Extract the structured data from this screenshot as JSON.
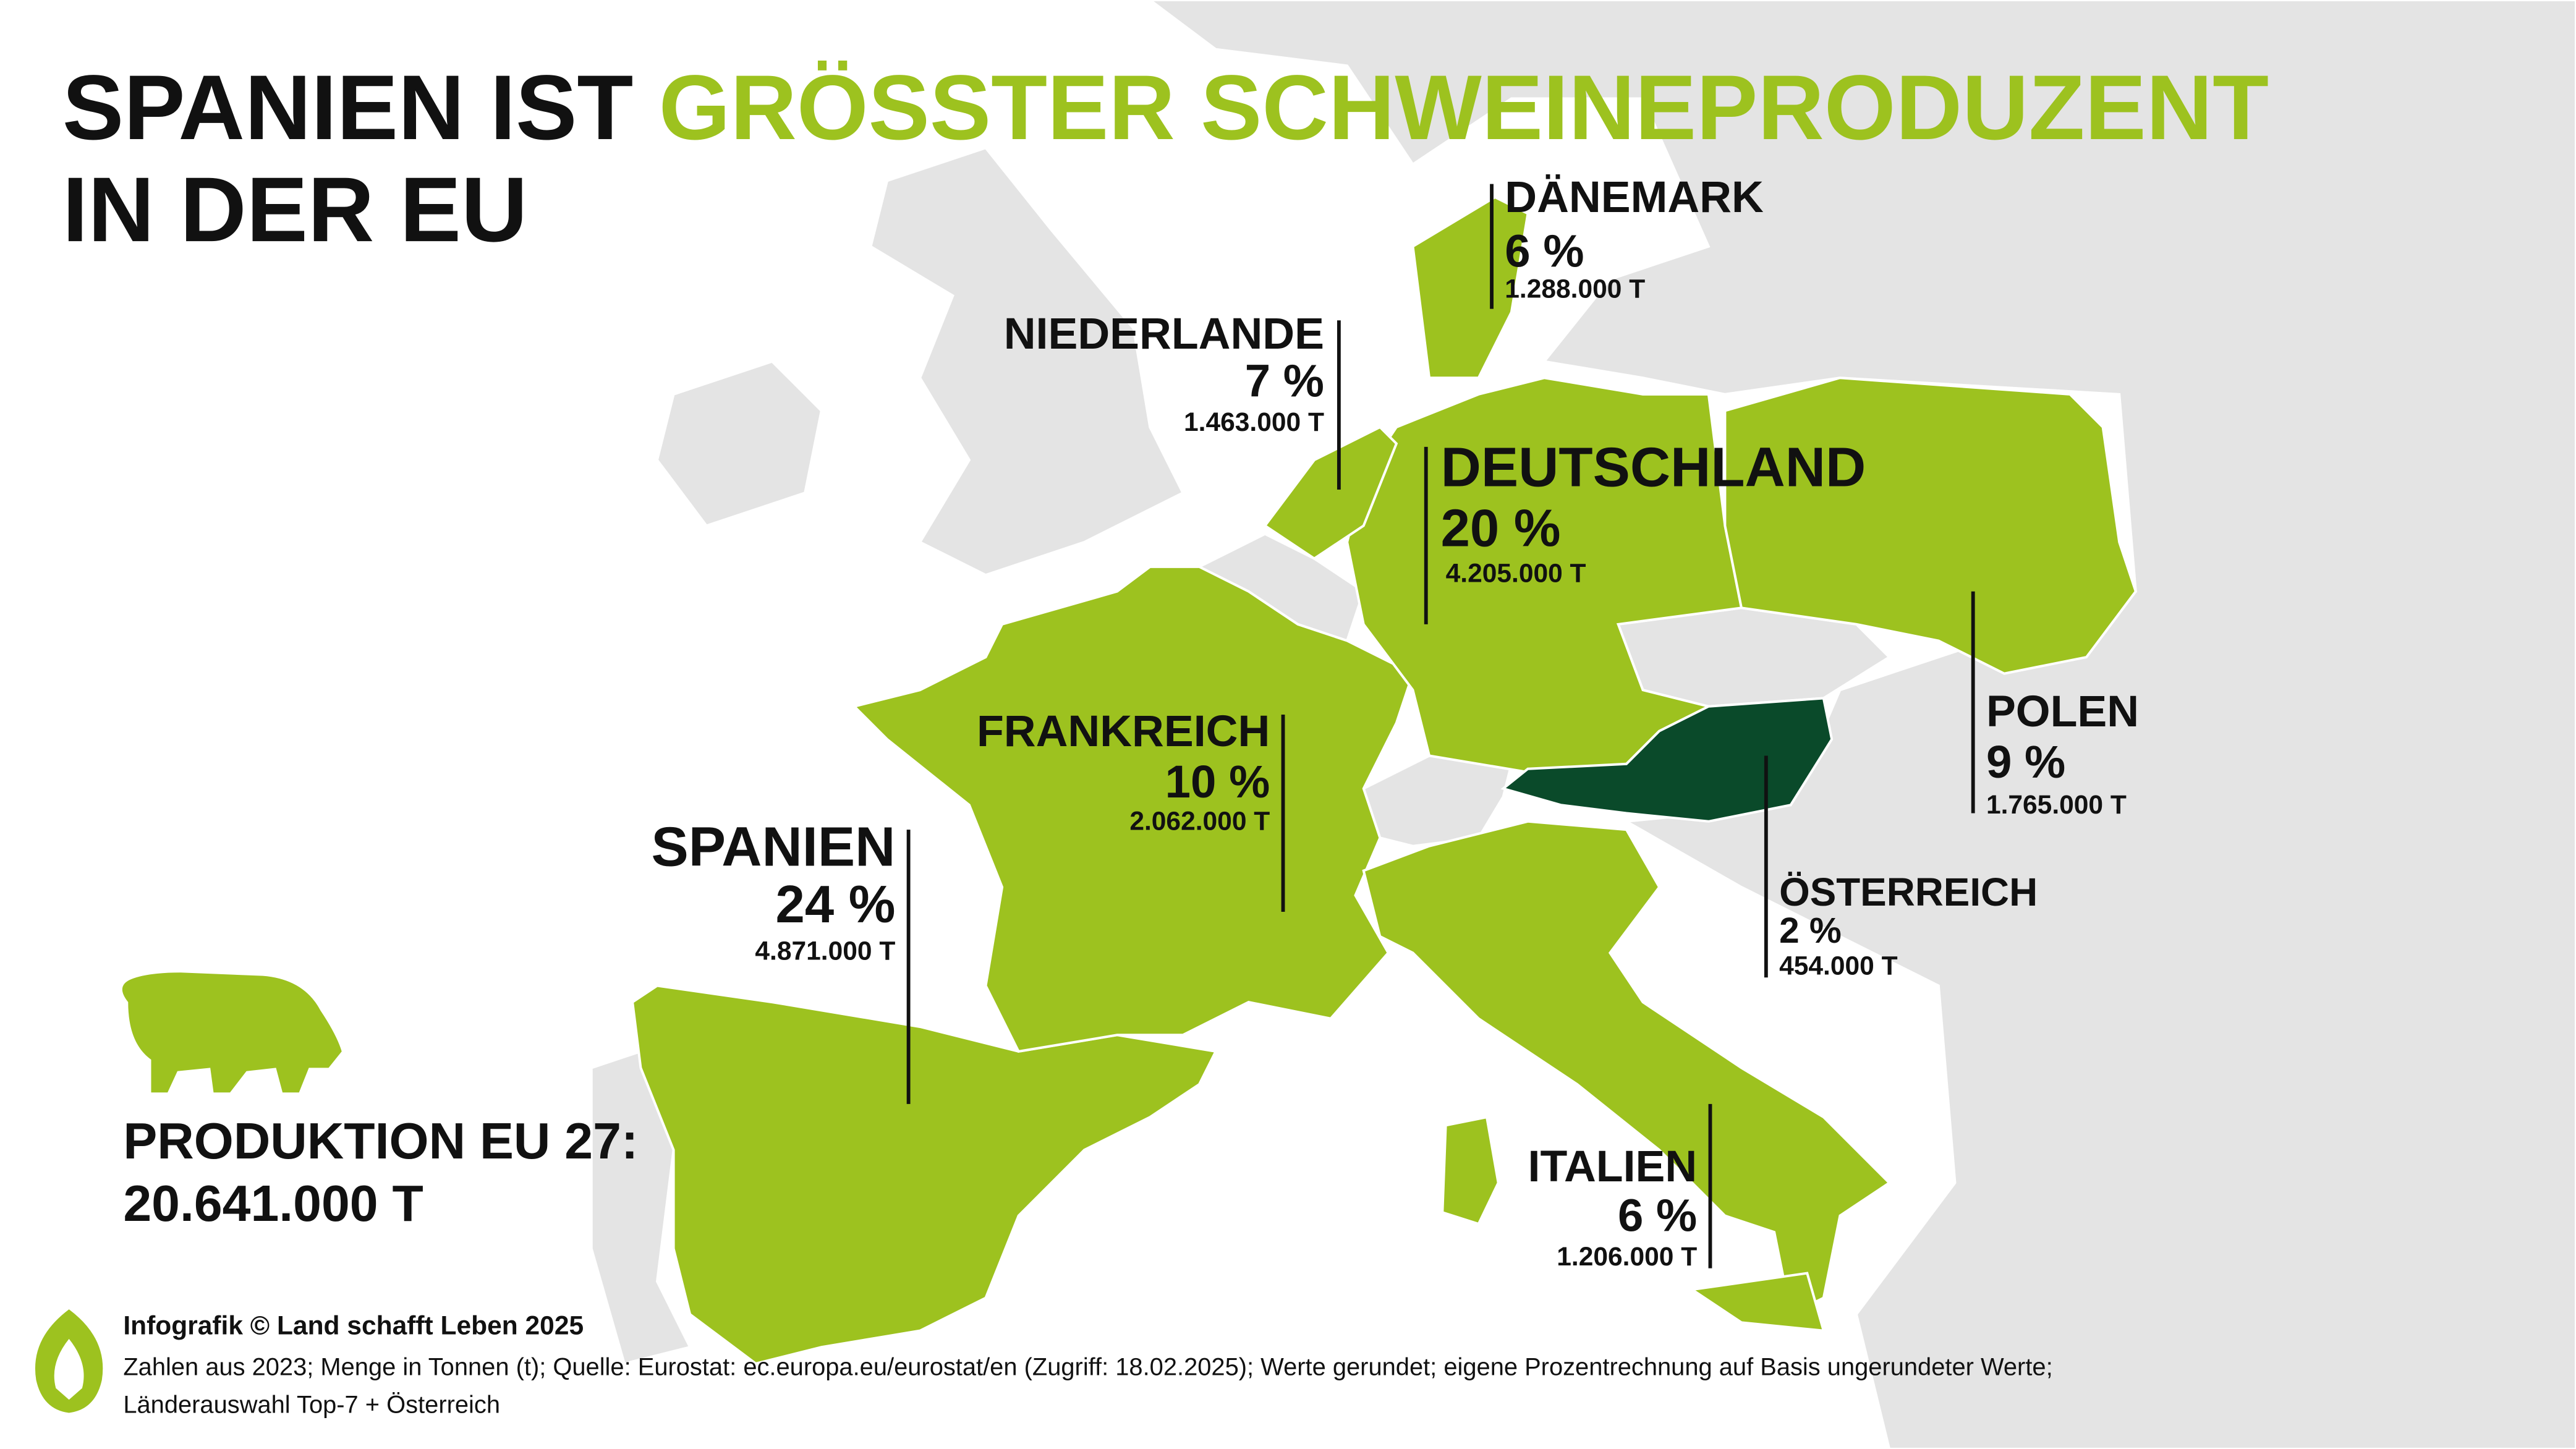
{
  "title": {
    "part1": "SPANIEN IST",
    "highlight": "GRÖSSTER SCHWEINEPRODUZENT",
    "line2": "IN DER EU"
  },
  "countries": [
    {
      "name": "DÄNEMARK",
      "share": "6 %",
      "amount": "1.288.000 T"
    },
    {
      "name": "NIEDERLANDE",
      "share": "7 %",
      "amount": "1.463.000 T"
    },
    {
      "name": "DEUTSCHLAND",
      "share": "20 %",
      "amount": "4.205.000 T"
    },
    {
      "name": "FRANKREICH",
      "share": "10 %",
      "amount": "2.062.000 T"
    },
    {
      "name": "SPANIEN",
      "share": "24 %",
      "amount": "4.871.000 T"
    },
    {
      "name": "POLEN",
      "share": "9 %",
      "amount": "1.765.000 T"
    },
    {
      "name": "ÖSTERREICH",
      "share": "2 %",
      "amount": "454.000 T"
    },
    {
      "name": "ITALIEN",
      "share": "6 %",
      "amount": "1.206.000 T"
    }
  ],
  "total": {
    "label": "PRODUKTION EU 27:",
    "value": "20.641.000 T"
  },
  "footer": {
    "credit": "Infografik © Land schafft Leben 2025",
    "note": "Zahlen aus 2023; Menge in Tonnen (t); Quelle: Eurostat: ec.europa.eu/eurostat/en (Zugriff: 18.02.2025); Werte gerundet; eigene Prozentrechnung auf Basis ungerundeter Werte;",
    "note2": "Länderauswahl Top-7 + Österreich"
  }
}
